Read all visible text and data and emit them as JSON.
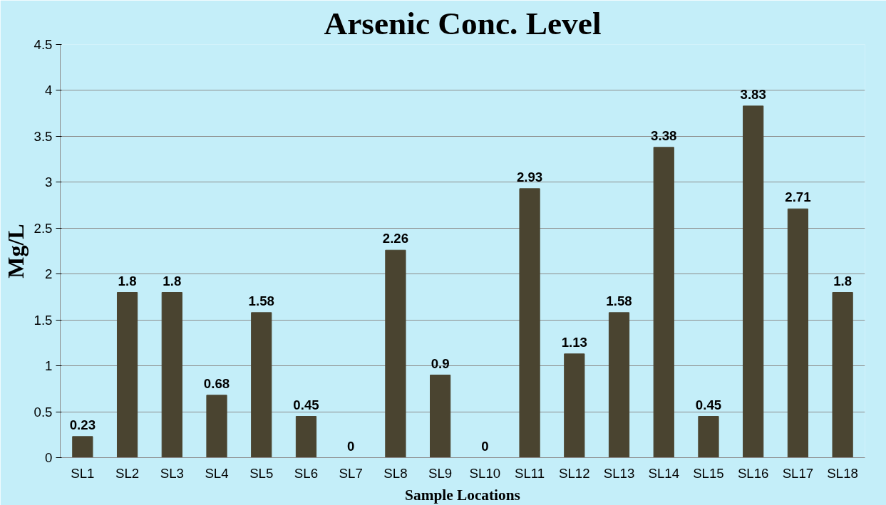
{
  "chart_data": {
    "type": "bar",
    "title": "Arsenic Conc. Level",
    "xlabel": "Sample Locations",
    "ylabel": "Mg/L",
    "categories": [
      "SL1",
      "SL2",
      "SL3",
      "SL4",
      "SL5",
      "SL6",
      "SL7",
      "SL8",
      "SL9",
      "SL10",
      "SL11",
      "SL12",
      "SL13",
      "SL14",
      "SL15",
      "SL16",
      "SL17",
      "SL18"
    ],
    "values": [
      0.23,
      1.8,
      1.8,
      0.68,
      1.58,
      0.45,
      0,
      2.26,
      0.9,
      0,
      2.93,
      1.13,
      1.58,
      3.38,
      0.45,
      3.83,
      2.71,
      1.8
    ],
    "color": "#4a4430",
    "ylim": [
      0,
      4.5
    ],
    "yticks": [
      0,
      0.5,
      1,
      1.5,
      2,
      2.5,
      3,
      3.5,
      4,
      4.5
    ],
    "grid": "y",
    "data_labels": true
  }
}
